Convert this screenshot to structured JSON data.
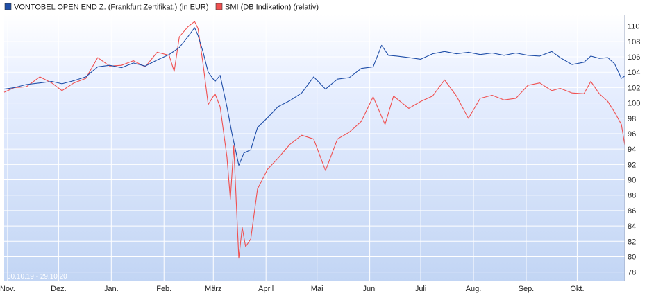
{
  "chart_data": {
    "type": "line",
    "legend": [
      {
        "label": "VONTOBEL OPEN END Z. (Frankfurt Zertifikat.) (in EUR)",
        "color": "#1f4ea8"
      },
      {
        "label": "SMI (DB Indikation) (relativ)",
        "color": "#f05050"
      }
    ],
    "date_range": "30.10.19 - 29.10.20",
    "x_ticks": [
      "Nov.",
      "Dez.",
      "Jan.",
      "Feb.",
      "März",
      "April",
      "Mai",
      "Juni",
      "Juli",
      "Aug.",
      "Sep.",
      "Okt."
    ],
    "y_ticks": [
      "78",
      "80",
      "82",
      "84",
      "86",
      "88",
      "90",
      "92",
      "94",
      "96",
      "98",
      "100",
      "102",
      "104",
      "106",
      "108",
      "110"
    ],
    "ylim": [
      76.8,
      111.5
    ],
    "grid": true,
    "series": [
      {
        "name": "VONTOBEL OPEN END Z. (Frankfurt Zertifikat.) (in EUR)",
        "color": "#1f4ea8",
        "points": [
          [
            "2019-10-30",
            101.8
          ],
          [
            "2019-11-05",
            102.0
          ],
          [
            "2019-11-12",
            102.4
          ],
          [
            "2019-11-20",
            102.6
          ],
          [
            "2019-11-27",
            102.8
          ],
          [
            "2019-12-03",
            102.5
          ],
          [
            "2019-12-10",
            102.9
          ],
          [
            "2019-12-17",
            103.4
          ],
          [
            "2019-12-24",
            104.7
          ],
          [
            "2019-12-31",
            104.9
          ],
          [
            "2020-01-07",
            104.6
          ],
          [
            "2020-01-14",
            105.2
          ],
          [
            "2020-01-21",
            104.8
          ],
          [
            "2020-01-28",
            105.6
          ],
          [
            "2020-02-04",
            106.3
          ],
          [
            "2020-02-10",
            107.2
          ],
          [
            "2020-02-15",
            108.6
          ],
          [
            "2020-02-19",
            109.8
          ],
          [
            "2020-02-21",
            108.8
          ],
          [
            "2020-02-24",
            106.6
          ],
          [
            "2020-02-27",
            104.0
          ],
          [
            "2020-03-02",
            102.8
          ],
          [
            "2020-03-05",
            103.6
          ],
          [
            "2020-03-09",
            99.5
          ],
          [
            "2020-03-12",
            96.0
          ],
          [
            "2020-03-16",
            91.9
          ],
          [
            "2020-03-19",
            93.5
          ],
          [
            "2020-03-23",
            93.9
          ],
          [
            "2020-03-27",
            96.8
          ],
          [
            "2020-04-02",
            98.1
          ],
          [
            "2020-04-08",
            99.5
          ],
          [
            "2020-04-15",
            100.3
          ],
          [
            "2020-04-22",
            101.3
          ],
          [
            "2020-04-29",
            103.4
          ],
          [
            "2020-05-06",
            101.8
          ],
          [
            "2020-05-13",
            103.1
          ],
          [
            "2020-05-20",
            103.3
          ],
          [
            "2020-05-27",
            104.5
          ],
          [
            "2020-06-03",
            104.7
          ],
          [
            "2020-06-08",
            107.5
          ],
          [
            "2020-06-12",
            106.2
          ],
          [
            "2020-06-17",
            106.1
          ],
          [
            "2020-06-24",
            105.9
          ],
          [
            "2020-07-01",
            105.7
          ],
          [
            "2020-07-08",
            106.4
          ],
          [
            "2020-07-15",
            106.7
          ],
          [
            "2020-07-22",
            106.4
          ],
          [
            "2020-07-29",
            106.6
          ],
          [
            "2020-08-05",
            106.3
          ],
          [
            "2020-08-12",
            106.5
          ],
          [
            "2020-08-19",
            106.2
          ],
          [
            "2020-08-26",
            106.5
          ],
          [
            "2020-09-02",
            106.2
          ],
          [
            "2020-09-09",
            106.1
          ],
          [
            "2020-09-16",
            106.7
          ],
          [
            "2020-09-21",
            105.9
          ],
          [
            "2020-09-28",
            105.0
          ],
          [
            "2020-10-05",
            105.3
          ],
          [
            "2020-10-09",
            106.1
          ],
          [
            "2020-10-14",
            105.8
          ],
          [
            "2020-10-19",
            105.9
          ],
          [
            "2020-10-23",
            105.1
          ],
          [
            "2020-10-27",
            103.2
          ],
          [
            "2020-10-29",
            103.5
          ]
        ]
      },
      {
        "name": "SMI (DB Indikation) (relativ)",
        "color": "#f05050",
        "points": [
          [
            "2019-10-30",
            101.4
          ],
          [
            "2019-11-05",
            102.0
          ],
          [
            "2019-11-12",
            102.1
          ],
          [
            "2019-11-20",
            103.4
          ],
          [
            "2019-11-27",
            102.6
          ],
          [
            "2019-12-03",
            101.6
          ],
          [
            "2019-12-10",
            102.6
          ],
          [
            "2019-12-17",
            103.2
          ],
          [
            "2019-12-24",
            105.9
          ],
          [
            "2019-12-31",
            104.8
          ],
          [
            "2020-01-07",
            104.9
          ],
          [
            "2020-01-14",
            105.5
          ],
          [
            "2020-01-21",
            104.7
          ],
          [
            "2020-01-28",
            106.6
          ],
          [
            "2020-02-04",
            106.2
          ],
          [
            "2020-02-07",
            104.1
          ],
          [
            "2020-02-10",
            108.6
          ],
          [
            "2020-02-15",
            109.9
          ],
          [
            "2020-02-19",
            110.6
          ],
          [
            "2020-02-21",
            109.7
          ],
          [
            "2020-02-24",
            105.0
          ],
          [
            "2020-02-27",
            99.8
          ],
          [
            "2020-03-02",
            101.2
          ],
          [
            "2020-03-05",
            99.5
          ],
          [
            "2020-03-09",
            93.0
          ],
          [
            "2020-03-11",
            87.5
          ],
          [
            "2020-03-13",
            94.4
          ],
          [
            "2020-03-16",
            79.8
          ],
          [
            "2020-03-18",
            83.8
          ],
          [
            "2020-03-20",
            81.3
          ],
          [
            "2020-03-23",
            82.3
          ],
          [
            "2020-03-27",
            88.8
          ],
          [
            "2020-04-02",
            91.4
          ],
          [
            "2020-04-08",
            92.8
          ],
          [
            "2020-04-15",
            94.6
          ],
          [
            "2020-04-22",
            95.8
          ],
          [
            "2020-04-29",
            95.3
          ],
          [
            "2020-05-06",
            91.2
          ],
          [
            "2020-05-13",
            95.3
          ],
          [
            "2020-05-20",
            96.2
          ],
          [
            "2020-05-27",
            97.6
          ],
          [
            "2020-06-03",
            100.8
          ],
          [
            "2020-06-10",
            97.2
          ],
          [
            "2020-06-15",
            100.9
          ],
          [
            "2020-06-24",
            99.3
          ],
          [
            "2020-07-01",
            100.2
          ],
          [
            "2020-07-08",
            100.9
          ],
          [
            "2020-07-15",
            103.0
          ],
          [
            "2020-07-22",
            100.9
          ],
          [
            "2020-07-29",
            98.0
          ],
          [
            "2020-08-05",
            100.6
          ],
          [
            "2020-08-12",
            101.0
          ],
          [
            "2020-08-19",
            100.4
          ],
          [
            "2020-08-26",
            100.6
          ],
          [
            "2020-09-02",
            102.3
          ],
          [
            "2020-09-09",
            102.6
          ],
          [
            "2020-09-16",
            101.6
          ],
          [
            "2020-09-21",
            101.9
          ],
          [
            "2020-09-28",
            101.3
          ],
          [
            "2020-10-05",
            101.2
          ],
          [
            "2020-10-09",
            102.8
          ],
          [
            "2020-10-14",
            101.2
          ],
          [
            "2020-10-19",
            100.2
          ],
          [
            "2020-10-23",
            98.8
          ],
          [
            "2020-10-27",
            97.2
          ],
          [
            "2020-10-29",
            94.5
          ]
        ]
      }
    ]
  }
}
